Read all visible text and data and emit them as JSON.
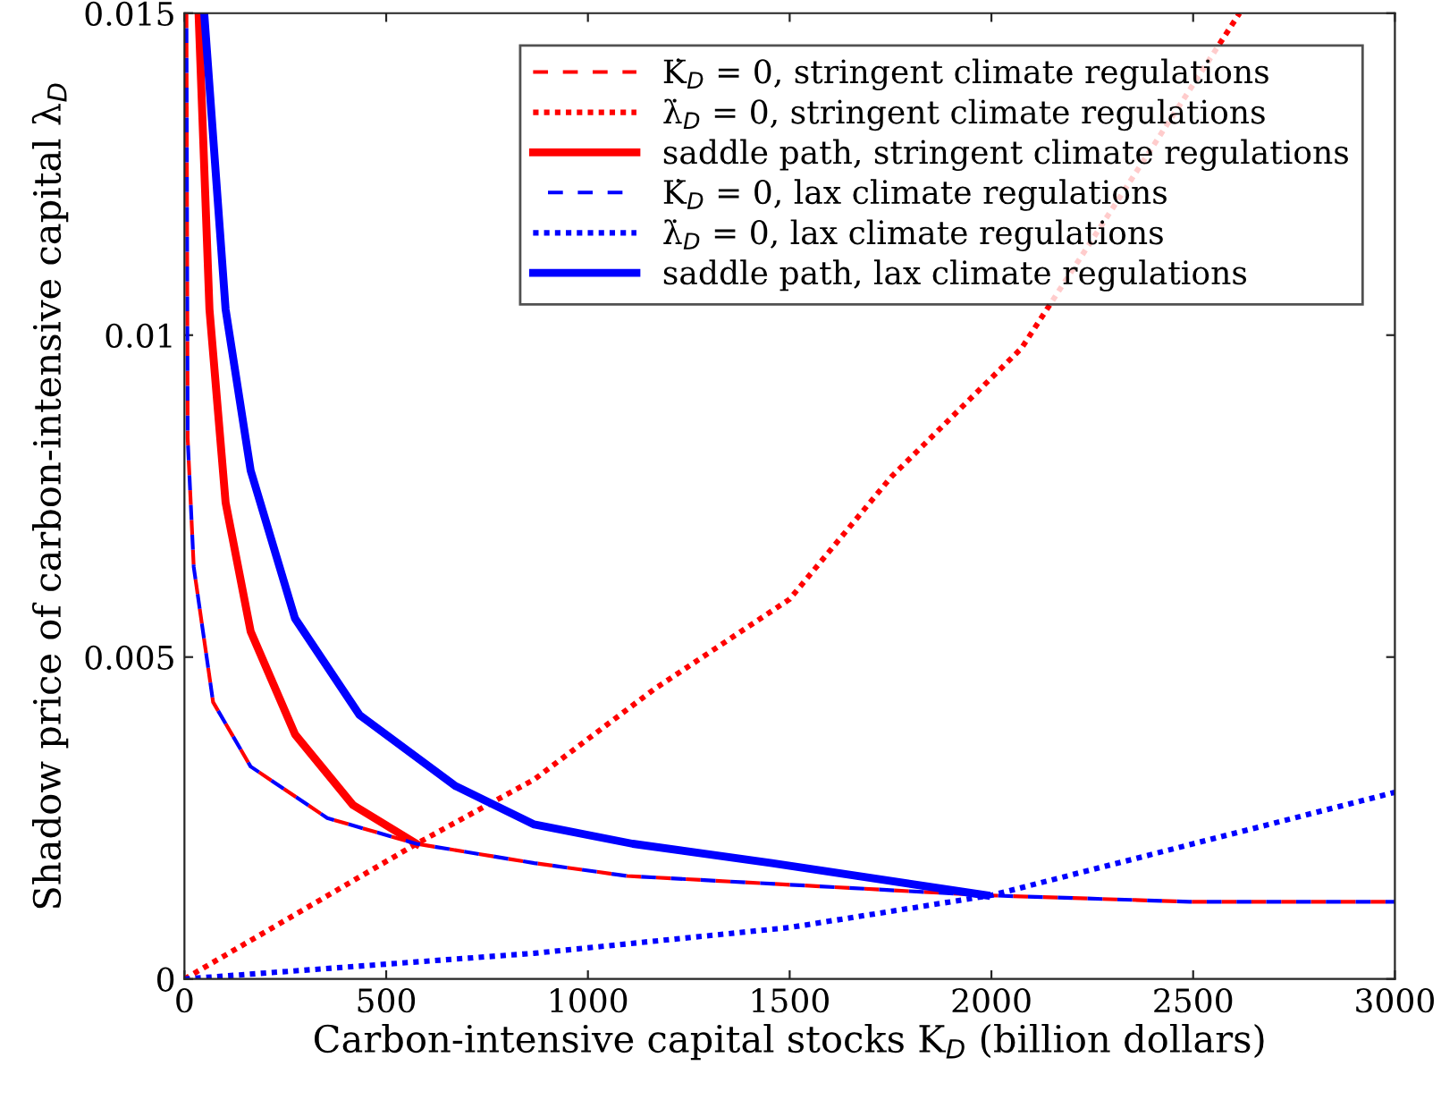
{
  "chart_data": {
    "type": "line",
    "xlabel": "Carbon-intensive capital stocks K$_{D}$ (billion dollars)",
    "ylabel": "Shadow price of carbon-intensive capital λ$_{D}$",
    "xlim": [
      0,
      3000
    ],
    "xticks": [
      0,
      500,
      1000,
      1500,
      2000,
      2500,
      3000
    ],
    "ylim": [
      0,
      0.015
    ],
    "yticks": [
      0,
      0.005,
      0.01,
      0.015
    ],
    "grid": false,
    "legend": "top right",
    "marker": "none",
    "series": [
      {
        "name": "K̇$_{D}$ = 0, stringent climate regulations",
        "color": "#ff0000",
        "line_style": "dashed",
        "x": [
          5,
          8,
          23,
          71,
          164,
          354,
          575,
          867,
          1097,
          1987,
          2491,
          3000
        ],
        "values": [
          0.015,
          0.0084,
          0.0064,
          0.0043,
          0.0033,
          0.0025,
          0.0021,
          0.0018,
          0.0016,
          0.0013,
          0.0012,
          0.0012
        ]
      },
      {
        "name": "λ̇$_{D}$ = 0, stringent climate regulations",
        "color": "#ff0000",
        "line_style": "dotted",
        "x": [
          0,
          274,
          575,
          867,
          1164,
          1500,
          1752,
          2075,
          2615
        ],
        "values": [
          0,
          0.001,
          0.0021,
          0.0031,
          0.0045,
          0.0059,
          0.0078,
          0.0098,
          0.015
        ]
      },
      {
        "name": "saddle path, stringent climate regulations",
        "color": "#ff0000",
        "line_style": "solid",
        "x": [
          35,
          62,
          102,
          164,
          274,
          418,
          575
        ],
        "values": [
          0.015,
          0.0104,
          0.0074,
          0.0054,
          0.0038,
          0.0027,
          0.0021
        ]
      },
      {
        "name": "K̇$_{D}$ = 0, lax climate regulations",
        "color": "#0000ff",
        "line_style": "dashed",
        "x": [
          5,
          8,
          23,
          71,
          164,
          354,
          575,
          867,
          1097,
          1987,
          2491,
          3000
        ],
        "values": [
          0.015,
          0.0084,
          0.0064,
          0.0043,
          0.0033,
          0.0025,
          0.0021,
          0.0018,
          0.0016,
          0.0013,
          0.0012,
          0.0012
        ]
      },
      {
        "name": "λ̇$_{D}$ = 0, lax climate regulations",
        "color": "#0000ff",
        "line_style": "dotted",
        "x": [
          0,
          867,
          1500,
          2000,
          2500,
          3000
        ],
        "values": [
          0,
          0.0004,
          0.0008,
          0.0013,
          0.0021,
          0.0029
        ]
      },
      {
        "name": "saddle path, lax climate regulations",
        "color": "#0000ff",
        "line_style": "solid",
        "x": [
          49,
          102,
          164,
          274,
          434,
          671,
          867,
          1111,
          1456,
          1987
        ],
        "values": [
          0.015,
          0.0104,
          0.0079,
          0.0056,
          0.0041,
          0.003,
          0.0024,
          0.0021,
          0.0018,
          0.0013
        ]
      }
    ]
  }
}
